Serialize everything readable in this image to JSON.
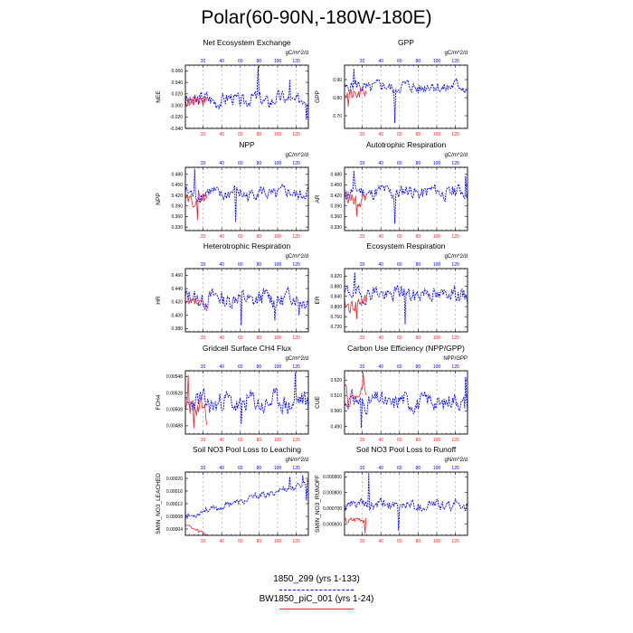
{
  "page_title": "Polar(60-90N,-180W-180E)",
  "colors": {
    "series1": "#0000ff",
    "series2": "#e8262b",
    "grid": "#9a9a9a"
  },
  "legend": [
    {
      "label": "1850_299 (yrs 1-133)",
      "color": "#0000ff",
      "style": "dashed"
    },
    {
      "label": "BW1850_piC_001 (yrs 1-24)",
      "color": "#e8262b",
      "style": "solid"
    }
  ],
  "chart_data": [
    {
      "type": "line",
      "title": "Net Ecosystem Exchange",
      "ylabel": "NEE",
      "units": "gC/m^2/d",
      "ylim": [
        -0.04,
        0.07
      ],
      "yticks": [
        -0.04,
        -0.02,
        0.0,
        0.02,
        0.04,
        0.06
      ],
      "ytick_labels": [
        "-0.040",
        "-0.020",
        "0.000",
        "0.020",
        "0.040",
        "0.060"
      ],
      "s1": {
        "base": 0.01,
        "amp": 0.018,
        "seed": 3,
        "spikes": [
          [
            78,
            0.068
          ],
          [
            112,
            0.045
          ],
          [
            130,
            -0.025
          ]
        ]
      },
      "s2": {
        "base": 0.01,
        "amp": 0.02,
        "seed": 17
      }
    },
    {
      "type": "line",
      "title": "GPP",
      "ylabel": "GPP",
      "units": "gC/m^2/d",
      "ylim": [
        0.63,
        0.98
      ],
      "yticks": [
        0.7,
        0.8,
        0.9
      ],
      "ytick_labels": [
        "0.70",
        "0.80",
        "0.90"
      ],
      "s1": {
        "base": 0.86,
        "amp": 0.05,
        "seed": 5,
        "spikes": [
          [
            10,
            0.96
          ],
          [
            54,
            0.66
          ]
        ]
      },
      "s2": {
        "base": 0.82,
        "amp": 0.05,
        "seed": 21,
        "spikes": [
          [
            4,
            0.75
          ]
        ]
      }
    },
    {
      "type": "line",
      "title": "NPP",
      "ylabel": "NPP",
      "units": "gC/m^2/d",
      "ylim": [
        0.32,
        0.5
      ],
      "yticks": [
        0.33,
        0.36,
        0.39,
        0.42,
        0.45,
        0.48
      ],
      "ytick_labels": [
        "0.330",
        "0.360",
        "0.390",
        "0.420",
        "0.450",
        "0.480"
      ],
      "s1": {
        "base": 0.425,
        "amp": 0.028,
        "seed": 8,
        "spikes": [
          [
            10,
            0.495
          ],
          [
            54,
            0.345
          ]
        ]
      },
      "s2": {
        "base": 0.41,
        "amp": 0.03,
        "seed": 29,
        "spikes": [
          [
            13,
            0.35
          ]
        ]
      }
    },
    {
      "type": "line",
      "title": "Autotrophic Respiration",
      "ylabel": "AR",
      "units": "gC/m^2/d",
      "ylim": [
        0.32,
        0.5
      ],
      "yticks": [
        0.33,
        0.36,
        0.39,
        0.42,
        0.45,
        0.48
      ],
      "ytick_labels": [
        "0.330",
        "0.360",
        "0.390",
        "0.420",
        "0.450",
        "0.480"
      ],
      "s1": {
        "base": 0.43,
        "amp": 0.028,
        "seed": 11,
        "spikes": [
          [
            10,
            0.49
          ],
          [
            54,
            0.34
          ],
          [
            130,
            0.475
          ]
        ]
      },
      "s2": {
        "base": 0.41,
        "amp": 0.03,
        "seed": 33,
        "spikes": [
          [
            13,
            0.36
          ]
        ]
      }
    },
    {
      "type": "line",
      "title": "Heterotrophic Respiration",
      "ylabel": "HR",
      "units": "gC/m^2/d",
      "ylim": [
        0.375,
        0.47
      ],
      "yticks": [
        0.38,
        0.4,
        0.42,
        0.44,
        0.46
      ],
      "ytick_labels": [
        "0.380",
        "0.400",
        "0.420",
        "0.440",
        "0.460"
      ],
      "s1": {
        "base": 0.425,
        "amp": 0.018,
        "seed": 13,
        "spikes": [
          [
            60,
            0.385
          ],
          [
            96,
            0.392
          ],
          [
            122,
            0.4
          ]
        ]
      },
      "s2": {
        "base": 0.415,
        "amp": 0.012,
        "seed": 37
      }
    },
    {
      "type": "line",
      "title": "Ecosystem Respiration",
      "ylabel": "ER",
      "units": "gC/m^2/d",
      "ylim": [
        0.7,
        0.95
      ],
      "yticks": [
        0.72,
        0.76,
        0.8,
        0.84,
        0.88,
        0.92
      ],
      "ytick_labels": [
        "0.720",
        "0.760",
        "0.800",
        "0.840",
        "0.880",
        "0.920"
      ],
      "s1": {
        "base": 0.85,
        "amp": 0.045,
        "seed": 19,
        "spikes": [
          [
            11,
            0.935
          ],
          [
            65,
            0.73
          ]
        ]
      },
      "s2": {
        "base": 0.81,
        "amp": 0.045,
        "seed": 41,
        "spikes": [
          [
            13,
            0.75
          ]
        ]
      }
    },
    {
      "type": "line",
      "title": "Gridcell Surface CH4 Flux",
      "ylabel": "FCH4",
      "units": "gC/m^2/d",
      "ylim": [
        0.00478,
        0.00555
      ],
      "yticks": [
        0.00488,
        0.00508,
        0.00528,
        0.00548
      ],
      "ytick_labels": [
        "0.00488",
        "0.00508",
        "0.00528",
        "0.00548"
      ],
      "s1": {
        "base": 0.00516,
        "amp": 0.00018,
        "seed": 23,
        "spikes": [
          [
            118,
            0.00553
          ],
          [
            60,
            0.0049
          ]
        ]
      },
      "s2": {
        "base": 0.00508,
        "amp": 0.0002,
        "seed": 43,
        "spikes": [
          [
            3,
            0.0055
          ],
          [
            9,
            0.00485
          ]
        ]
      }
    },
    {
      "type": "line",
      "title": "Carbon Use Efficiency (NPP/GPP)",
      "ylabel": "CUE",
      "units": "NPP/GPP",
      "ylim": [
        0.485,
        0.526
      ],
      "yticks": [
        0.49,
        0.5,
        0.51,
        0.52
      ],
      "ytick_labels": [
        "0.490",
        "0.500",
        "0.510",
        "0.520"
      ],
      "s1": {
        "base": 0.506,
        "amp": 0.008,
        "seed": 31,
        "spikes": [
          [
            18,
            0.489
          ],
          [
            130,
            0.522
          ]
        ]
      },
      "s2": {
        "base": 0.51,
        "amp": 0.01,
        "seed": 47,
        "spikes": [
          [
            20,
            0.525
          ]
        ]
      }
    },
    {
      "type": "line",
      "title": "Soil NO3 Pool Loss to Leaching",
      "ylabel": "SMIN_NO3_LEACHED",
      "units": "gN/m^2/d",
      "ylim": [
        2e-05,
        0.00022
      ],
      "yticks": [
        4e-05,
        8e-05,
        0.00012,
        0.00016,
        0.0002
      ],
      "ytick_labels": [
        "0.00004",
        "0.00008",
        "0.00012",
        "0.00016",
        "0.00020"
      ],
      "s1": {
        "base": 8e-05,
        "amp": 1.5e-05,
        "seed": 53,
        "trend": 8e-07,
        "spikes": [
          [
            112,
            0.000205
          ],
          [
            126,
            0.00021
          ],
          [
            130,
            0.00013
          ]
        ]
      },
      "s2": {
        "base": 5.5e-05,
        "amp": 1e-05,
        "seed": 59,
        "trend": -1.5e-06
      }
    },
    {
      "type": "line",
      "title": "Soil NO3 Pool Loss to Runoff",
      "ylabel": "SMIN_NO3_RUNOFF",
      "units": "gN/m^2/d",
      "ylim": [
        0.00053,
        0.00093
      ],
      "yticks": [
        0.0006,
        0.0007,
        0.0008,
        0.0009
      ],
      "ytick_labels": [
        "0.000600",
        "0.000700",
        "0.000800",
        "0.000900"
      ],
      "s1": {
        "base": 0.00072,
        "amp": 5e-05,
        "seed": 61,
        "spikes": [
          [
            26,
            0.000925
          ],
          [
            58,
            0.00056
          ]
        ]
      },
      "s2": {
        "base": 0.00063,
        "amp": 3e-05,
        "seed": 67,
        "spikes": [
          [
            22,
            0.00054
          ]
        ]
      }
    }
  ],
  "axis": {
    "x1_ticks": [
      20,
      40,
      60,
      80,
      100,
      120
    ],
    "x2_ticks": [
      20,
      40,
      60,
      80,
      100,
      120
    ],
    "x1_len": 133,
    "x2_len": 24
  }
}
